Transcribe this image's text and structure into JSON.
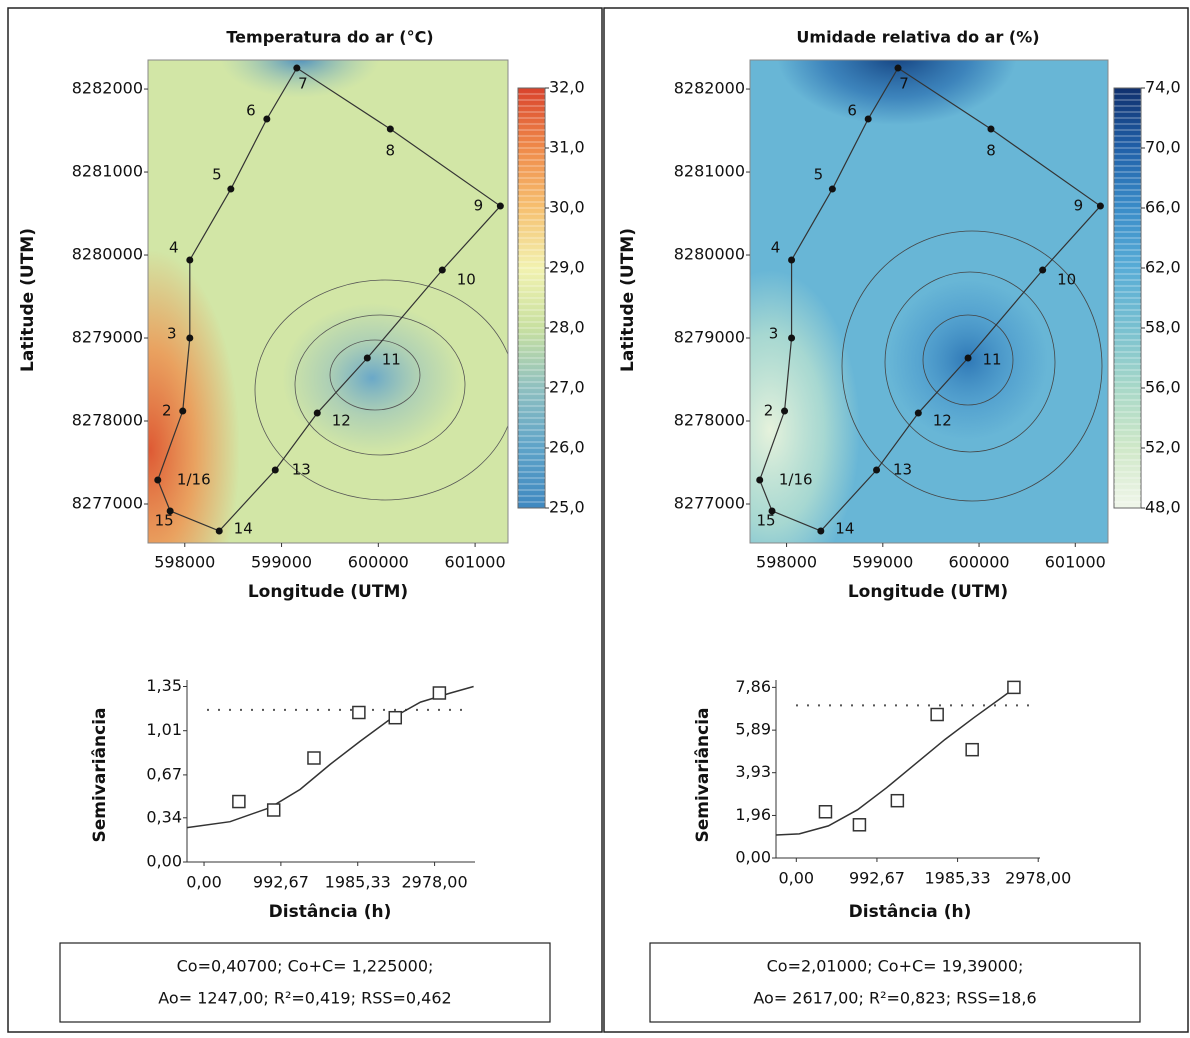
{
  "chart_data": [
    {
      "type": "contour_map",
      "title": "Temperatura do ar (°C)",
      "x_label": "Longitude (UTM)",
      "y_label": "Latitude (UTM)",
      "xlim": [
        597620,
        601340
      ],
      "ylim": [
        8276530,
        8282350
      ],
      "xticks": [
        598000,
        599000,
        600000,
        601000
      ],
      "yticks": [
        8277000,
        8278000,
        8279000,
        8280000,
        8281000,
        8282000
      ],
      "x": [
        597721,
        597979,
        598052,
        598052,
        598476,
        598848,
        599158,
        600124,
        601261,
        600661,
        599886,
        599369,
        598935,
        598356,
        597849
      ],
      "y": [
        8277289,
        8278120,
        8279000,
        8279940,
        8280795,
        8281639,
        8282253,
        8281518,
        8280590,
        8279819,
        8278759,
        8278096,
        8277410,
        8276675,
        8276916
      ],
      "point_labels": [
        "1/16",
        "2",
        "3",
        "4",
        "5",
        "6",
        "7",
        "8",
        "9",
        "10",
        "11",
        "12",
        "13",
        "14",
        "15"
      ],
      "point_color": "#111111",
      "colorbar_ticks": [
        {
          "value": 25,
          "label": "25,0"
        },
        {
          "value": 26,
          "label": "26,0"
        },
        {
          "value": 27,
          "label": "27,0"
        },
        {
          "value": 28,
          "label": "28,0"
        },
        {
          "value": 29,
          "label": "29,0"
        },
        {
          "value": 30,
          "label": "30,0"
        },
        {
          "value": 31,
          "label": "31,0"
        },
        {
          "value": 32,
          "label": "32,0"
        }
      ],
      "colorbar_colors": [
        "#3f88c0",
        "#5ea3c8",
        "#8fc0c0",
        "#c8e0a0",
        "#f2f2b0",
        "#f6c070",
        "#ef8a4a",
        "#d9432c"
      ]
    },
    {
      "type": "semivariogram",
      "x_label": "Distância (h)",
      "y_label": "Semivariância",
      "xlim": [
        -220,
        3500
      ],
      "ylim": [
        0,
        1.4
      ],
      "xticks": [
        {
          "value": 0,
          "label": "0,00"
        },
        {
          "value": 992.67,
          "label": "992,67"
        },
        {
          "value": 1985.33,
          "label": "1985,33"
        },
        {
          "value": 2978,
          "label": "2978,00"
        }
      ],
      "yticks": [
        {
          "value": 0,
          "label": "0,00"
        },
        {
          "value": 0.34,
          "label": "0,34"
        },
        {
          "value": 0.67,
          "label": "0,67"
        },
        {
          "value": 1.01,
          "label": "1,01"
        },
        {
          "value": 1.35,
          "label": "1,35"
        }
      ],
      "points_x": [
        450,
        900,
        1420,
        2000,
        2470,
        3040
      ],
      "points_y": [
        0.465,
        0.4,
        0.8,
        1.15,
        1.11,
        1.3
      ],
      "model_x": [
        -220,
        336,
        854,
        1242,
        1631,
        2019,
        2407,
        2796,
        3184,
        3482
      ],
      "model_y": [
        0.264,
        0.31,
        0.419,
        0.559,
        0.752,
        0.93,
        1.1,
        1.23,
        1.3,
        1.35
      ],
      "sill": 1.17,
      "color": "#333333",
      "annotation": [
        "Co=0,40700; Co+C= 1,225000;",
        "Ao= 1247,00; R²=0,419; RSS=0,462"
      ]
    },
    {
      "type": "contour_map",
      "title": "Umidade relativa do ar (%)",
      "x_label": "Longitude (UTM)",
      "y_label": "Latitude (UTM)",
      "xlim": [
        597620,
        601340
      ],
      "ylim": [
        8276530,
        8282350
      ],
      "xticks": [
        598000,
        599000,
        600000,
        601000
      ],
      "yticks": [
        8277000,
        8278000,
        8279000,
        8280000,
        8281000,
        8282000
      ],
      "x": [
        597721,
        597979,
        598052,
        598052,
        598476,
        598848,
        599158,
        600124,
        601261,
        600661,
        599886,
        599369,
        598935,
        598356,
        597849
      ],
      "y": [
        8277289,
        8278120,
        8279000,
        8279940,
        8280795,
        8281639,
        8282253,
        8281518,
        8280590,
        8279819,
        8278759,
        8278096,
        8277410,
        8276675,
        8276916
      ],
      "point_labels": [
        "1/16",
        "2",
        "3",
        "4",
        "5",
        "6",
        "7",
        "8",
        "9",
        "10",
        "11",
        "12",
        "13",
        "14",
        "15"
      ],
      "point_color": "#111111",
      "colorbar_ticks": [
        {
          "value": 48,
          "label": "48,0"
        },
        {
          "value": 52,
          "label": "52,0"
        },
        {
          "value": 56,
          "label": "56,0"
        },
        {
          "value": 58,
          "label": "58,0"
        },
        {
          "value": 62,
          "label": "62,0"
        },
        {
          "value": 66,
          "label": "66,0"
        },
        {
          "value": 70,
          "label": "70,0"
        },
        {
          "value": 74,
          "label": "74,0"
        }
      ],
      "colorbar_colors": [
        "#f0f6ea",
        "#cfe8c8",
        "#a8d8c8",
        "#78c0d0",
        "#58acd6",
        "#3a8cc8",
        "#2060a8",
        "#10306e"
      ]
    },
    {
      "type": "semivariogram",
      "x_label": "Distância (h)",
      "y_label": "Semivariância",
      "xlim": [
        -250,
        3000
      ],
      "ylim": [
        0,
        8.2
      ],
      "xticks": [
        {
          "value": 0,
          "label": "0,00"
        },
        {
          "value": 992.67,
          "label": "992,67"
        },
        {
          "value": 1985.33,
          "label": "1985,33"
        },
        {
          "value": 2978,
          "label": "2978,00"
        }
      ],
      "yticks": [
        {
          "value": 0,
          "label": "0,00"
        },
        {
          "value": 1.96,
          "label": "1,96"
        },
        {
          "value": 3.93,
          "label": "3,93"
        },
        {
          "value": 5.89,
          "label": "5,89"
        },
        {
          "value": 7.86,
          "label": "7,86"
        }
      ],
      "points_x": [
        359,
        777,
        1244,
        1734,
        2165,
        2679
      ],
      "points_y": [
        2.13,
        1.53,
        2.64,
        6.61,
        4.99,
        7.86
      ],
      "model_x": [
        -251,
        36,
        395,
        753,
        1112,
        1471,
        1830,
        2188,
        2547,
        2750
      ],
      "model_y": [
        1.06,
        1.11,
        1.48,
        2.22,
        3.24,
        4.35,
        5.46,
        6.47,
        7.44,
        8.0
      ],
      "sill": 7.03,
      "color": "#333333",
      "annotation": [
        "Co=2,01000; Co+C= 19,39000;",
        "Ao= 2617,00; R²=0,823; RSS=18,6"
      ]
    }
  ]
}
